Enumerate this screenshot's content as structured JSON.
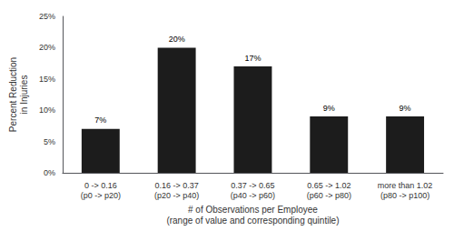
{
  "chart_data": {
    "type": "bar",
    "categories": [
      "0 -> 0.16\n(p0 -> p20)",
      "0.16 -> 0.37\n(p20 -> p40)",
      "0.37 -> 0.65\n(p40 -> p60)",
      "0.65 -> 1.02\n(p60 -> p80)",
      "more than 1.02\n(p80 -> p100)"
    ],
    "values": [
      0.07,
      0.2,
      0.17,
      0.09,
      0.09
    ],
    "value_labels": [
      "7%",
      "20%",
      "17%",
      "9%",
      "9%"
    ],
    "data_labels": true,
    "color": "#1c1c1c",
    "xlabel": "# of Observations per Employee\n(range of value and corresponding quintile)",
    "ylabel": "Percent Reduction\nin Injuries",
    "ylim": [
      0,
      0.25
    ],
    "yticks": [
      {
        "value": 0.0,
        "label": "0%"
      },
      {
        "value": 0.05,
        "label": "5%"
      },
      {
        "value": 0.1,
        "label": "10%"
      },
      {
        "value": 0.15,
        "label": "15%"
      },
      {
        "value": 0.2,
        "label": "20%"
      },
      {
        "value": 0.25,
        "label": "25%"
      }
    ],
    "grid": false
  }
}
